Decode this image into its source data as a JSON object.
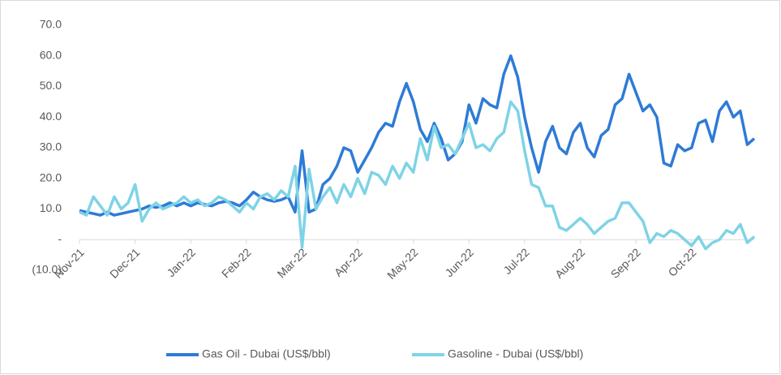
{
  "chart_data": {
    "type": "line",
    "categories": [
      "Nov-21",
      null,
      null,
      null,
      null,
      null,
      null,
      null,
      "Dec-21",
      null,
      null,
      null,
      null,
      null,
      null,
      null,
      "Jan-22",
      null,
      null,
      null,
      null,
      null,
      null,
      null,
      "Feb-22",
      null,
      null,
      null,
      null,
      null,
      null,
      null,
      "Mar-22",
      null,
      null,
      null,
      null,
      null,
      null,
      null,
      "Apr-22",
      null,
      null,
      null,
      null,
      null,
      null,
      null,
      "May-22",
      null,
      null,
      null,
      null,
      null,
      null,
      null,
      "Jun-22",
      null,
      null,
      null,
      null,
      null,
      null,
      null,
      "Jul-22",
      null,
      null,
      null,
      null,
      null,
      null,
      null,
      "Aug-22",
      null,
      null,
      null,
      null,
      null,
      null,
      null,
      "Sep-22",
      null,
      null,
      null,
      null,
      null,
      null,
      null,
      "Oct-22",
      null,
      null,
      null,
      null,
      null,
      null,
      null,
      null,
      null
    ],
    "series": [
      {
        "name": "Gas Oil - Dubai (US$/bbl)",
        "color": "#2e7bd6",
        "values": [
          9.5,
          9,
          8.5,
          8,
          9,
          8,
          8.5,
          9,
          9.5,
          10,
          11,
          10.5,
          11,
          12,
          11,
          12,
          11,
          12,
          11.5,
          11,
          12,
          12.5,
          12,
          11,
          13,
          15.5,
          14,
          13,
          12.5,
          13,
          14,
          9,
          29,
          9,
          10,
          18,
          20,
          24,
          30,
          29,
          22,
          26,
          30,
          35,
          38,
          37,
          45,
          51,
          45,
          36,
          32,
          38,
          33,
          26,
          28,
          32,
          44,
          38,
          46,
          44,
          43,
          54,
          60,
          53,
          40,
          30,
          22,
          32,
          37,
          30,
          28,
          35,
          38,
          30,
          27,
          34,
          36,
          44,
          46,
          54,
          48,
          42,
          44,
          40,
          25,
          24,
          31,
          29,
          30,
          38,
          39,
          32,
          42,
          45,
          40,
          42,
          31,
          33
        ]
      },
      {
        "name": "Gasoline - Dubai (US$/bbl)",
        "color": "#7fd3e6",
        "values": [
          9,
          8,
          14,
          11,
          8,
          14,
          10,
          12,
          18,
          6,
          10,
          12,
          10,
          11,
          12,
          14,
          12,
          13,
          11,
          12,
          14,
          13,
          11,
          9,
          12,
          10,
          14,
          15,
          13,
          16,
          14,
          24,
          -2.5,
          23,
          10,
          14,
          17,
          12,
          18,
          14,
          20,
          15,
          22,
          21,
          18,
          24,
          20,
          25,
          22,
          33,
          26,
          37,
          30,
          31,
          28,
          33,
          38,
          30,
          31,
          29,
          33,
          35,
          45,
          42,
          29,
          18,
          17,
          11,
          11,
          4,
          3,
          5,
          7,
          5,
          2,
          4,
          6,
          7,
          12,
          12,
          9,
          6,
          -1,
          2,
          1,
          3,
          2,
          0,
          -2,
          1,
          -3,
          -1,
          0,
          3,
          2,
          5,
          -1,
          1
        ]
      }
    ],
    "ylim": [
      -10,
      70
    ],
    "yticks": [
      {
        "value": -10,
        "label": "(10.0)"
      },
      {
        "value": 0,
        "label": "-"
      },
      {
        "value": 10,
        "label": "10.0"
      },
      {
        "value": 20,
        "label": "20.0"
      },
      {
        "value": 30,
        "label": "30.0"
      },
      {
        "value": 40,
        "label": "40.0"
      },
      {
        "value": 50,
        "label": "50.0"
      },
      {
        "value": 60,
        "label": "60.0"
      },
      {
        "value": 70,
        "label": "70.0"
      }
    ],
    "grid": false,
    "legend": "bottom"
  }
}
